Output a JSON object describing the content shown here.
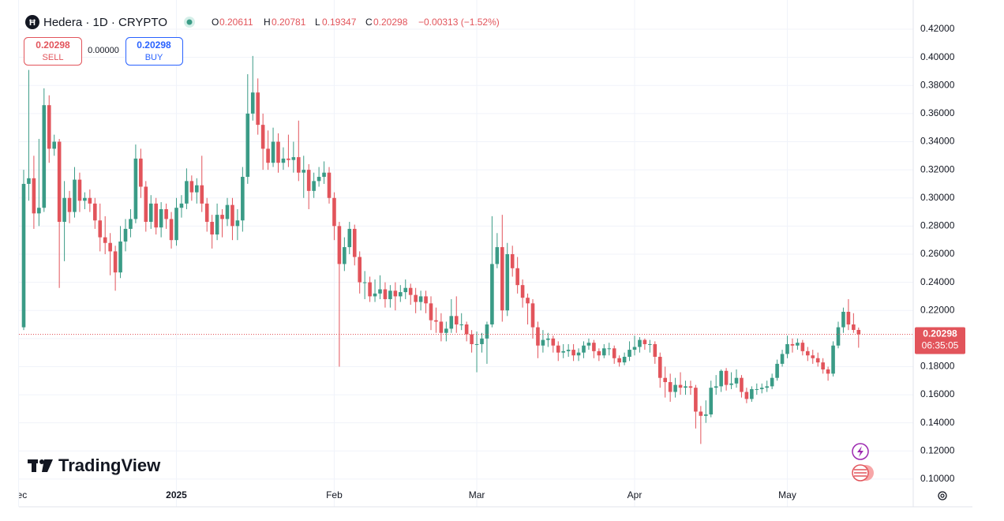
{
  "chart_data": {
    "type": "candlestick",
    "title": "Hedera · 1D · CRYPTO",
    "ohlc_labels": [
      "O",
      "H",
      "L",
      "C"
    ],
    "change": "−0.00313 (−1.52%)",
    "sell": {
      "price": "0.20298",
      "label": "SELL"
    },
    "spread": "0.00000",
    "buy": {
      "price": "0.20298",
      "label": "BUY"
    },
    "price_tag": {
      "price": "0.20298",
      "countdown": "06:35:05"
    },
    "watermark": "TradingView",
    "up_color": "#3a9b86",
    "down_color": "#e2545b",
    "grid": true,
    "ylim": [
      0.0803,
      0.4408
    ],
    "yticks": [
      {
        "value": 0.1,
        "label": "0.10000"
      },
      {
        "value": 0.12,
        "label": "0.12000"
      },
      {
        "value": 0.14,
        "label": "0.14000"
      },
      {
        "value": 0.16,
        "label": "0.16000"
      },
      {
        "value": 0.18,
        "label": "0.18000"
      },
      {
        "value": 0.2,
        "label": "0.20000"
      },
      {
        "value": 0.22,
        "label": "0.22000"
      },
      {
        "value": 0.24,
        "label": "0.24000"
      },
      {
        "value": 0.26,
        "label": "0.26000"
      },
      {
        "value": 0.28,
        "label": "0.28000"
      },
      {
        "value": 0.3,
        "label": "0.30000"
      },
      {
        "value": 0.32,
        "label": "0.32000"
      },
      {
        "value": 0.34,
        "label": "0.34000"
      },
      {
        "value": 0.36,
        "label": "0.36000"
      },
      {
        "value": 0.38,
        "label": "0.38000"
      },
      {
        "value": 0.4,
        "label": "0.40000"
      },
      {
        "value": 0.42,
        "label": "0.42000"
      }
    ],
    "xticks": [
      {
        "value": -1,
        "label": "Dec"
      },
      {
        "value": 30,
        "label": "2025"
      },
      {
        "value": 61,
        "label": "Feb"
      },
      {
        "value": 89,
        "label": "Mar"
      },
      {
        "value": 120,
        "label": "Apr"
      },
      {
        "value": 150,
        "label": "May"
      }
    ],
    "candles": [
      [
        0.208,
        0.32,
        0.206,
        0.31
      ],
      [
        0.31,
        0.391,
        0.298,
        0.314
      ],
      [
        0.314,
        0.33,
        0.278,
        0.289
      ],
      [
        0.289,
        0.342,
        0.28,
        0.293
      ],
      [
        0.293,
        0.378,
        0.29,
        0.366
      ],
      [
        0.366,
        0.373,
        0.325,
        0.335
      ],
      [
        0.335,
        0.345,
        0.33,
        0.34
      ],
      [
        0.34,
        0.342,
        0.236,
        0.283
      ],
      [
        0.283,
        0.312,
        0.255,
        0.3
      ],
      [
        0.3,
        0.305,
        0.282,
        0.29
      ],
      [
        0.29,
        0.322,
        0.286,
        0.313
      ],
      [
        0.313,
        0.318,
        0.29,
        0.298
      ],
      [
        0.298,
        0.304,
        0.292,
        0.3
      ],
      [
        0.3,
        0.306,
        0.29,
        0.296
      ],
      [
        0.296,
        0.3,
        0.278,
        0.284
      ],
      [
        0.284,
        0.296,
        0.262,
        0.272
      ],
      [
        0.272,
        0.287,
        0.26,
        0.268
      ],
      [
        0.268,
        0.275,
        0.245,
        0.262
      ],
      [
        0.262,
        0.266,
        0.234,
        0.247
      ],
      [
        0.247,
        0.28,
        0.243,
        0.269
      ],
      [
        0.269,
        0.285,
        0.262,
        0.278
      ],
      [
        0.278,
        0.292,
        0.272,
        0.285
      ],
      [
        0.285,
        0.338,
        0.282,
        0.328
      ],
      [
        0.328,
        0.335,
        0.3,
        0.308
      ],
      [
        0.308,
        0.312,
        0.276,
        0.283
      ],
      [
        0.283,
        0.302,
        0.278,
        0.296
      ],
      [
        0.296,
        0.3,
        0.274,
        0.279
      ],
      [
        0.279,
        0.297,
        0.272,
        0.292
      ],
      [
        0.292,
        0.296,
        0.278,
        0.285
      ],
      [
        0.285,
        0.29,
        0.264,
        0.27
      ],
      [
        0.27,
        0.3,
        0.266,
        0.293
      ],
      [
        0.293,
        0.302,
        0.286,
        0.296
      ],
      [
        0.296,
        0.321,
        0.292,
        0.312
      ],
      [
        0.312,
        0.316,
        0.298,
        0.304
      ],
      [
        0.304,
        0.314,
        0.296,
        0.309
      ],
      [
        0.309,
        0.33,
        0.29,
        0.296
      ],
      [
        0.296,
        0.3,
        0.276,
        0.283
      ],
      [
        0.283,
        0.288,
        0.264,
        0.274
      ],
      [
        0.274,
        0.296,
        0.27,
        0.288
      ],
      [
        0.288,
        0.292,
        0.272,
        0.285
      ],
      [
        0.285,
        0.3,
        0.28,
        0.295
      ],
      [
        0.295,
        0.3,
        0.27,
        0.28
      ],
      [
        0.28,
        0.292,
        0.27,
        0.284
      ],
      [
        0.284,
        0.322,
        0.276,
        0.315
      ],
      [
        0.315,
        0.388,
        0.31,
        0.36
      ],
      [
        0.36,
        0.401,
        0.355,
        0.375
      ],
      [
        0.375,
        0.385,
        0.345,
        0.352
      ],
      [
        0.352,
        0.36,
        0.32,
        0.335
      ],
      [
        0.335,
        0.348,
        0.32,
        0.325
      ],
      [
        0.325,
        0.35,
        0.322,
        0.34
      ],
      [
        0.34,
        0.346,
        0.318,
        0.325
      ],
      [
        0.325,
        0.336,
        0.32,
        0.328
      ],
      [
        0.328,
        0.345,
        0.322,
        0.327
      ],
      [
        0.327,
        0.34,
        0.318,
        0.329
      ],
      [
        0.329,
        0.355,
        0.312,
        0.318
      ],
      [
        0.318,
        0.33,
        0.3,
        0.32
      ],
      [
        0.32,
        0.324,
        0.292,
        0.305
      ],
      [
        0.305,
        0.318,
        0.3,
        0.312
      ],
      [
        0.312,
        0.322,
        0.308,
        0.315
      ],
      [
        0.315,
        0.326,
        0.31,
        0.318
      ],
      [
        0.318,
        0.322,
        0.296,
        0.3
      ],
      [
        0.3,
        0.304,
        0.27,
        0.28
      ],
      [
        0.28,
        0.283,
        0.18,
        0.253
      ],
      [
        0.253,
        0.272,
        0.248,
        0.265
      ],
      [
        0.265,
        0.283,
        0.26,
        0.278
      ],
      [
        0.278,
        0.281,
        0.252,
        0.258
      ],
      [
        0.258,
        0.262,
        0.232,
        0.24
      ],
      [
        0.24,
        0.248,
        0.228,
        0.24
      ],
      [
        0.24,
        0.244,
        0.226,
        0.23
      ],
      [
        0.23,
        0.242,
        0.226,
        0.232
      ],
      [
        0.232,
        0.245,
        0.228,
        0.235
      ],
      [
        0.235,
        0.24,
        0.222,
        0.228
      ],
      [
        0.228,
        0.238,
        0.222,
        0.234
      ],
      [
        0.234,
        0.24,
        0.22,
        0.23
      ],
      [
        0.23,
        0.238,
        0.226,
        0.233
      ],
      [
        0.233,
        0.242,
        0.228,
        0.236
      ],
      [
        0.236,
        0.239,
        0.224,
        0.231
      ],
      [
        0.231,
        0.236,
        0.218,
        0.226
      ],
      [
        0.226,
        0.234,
        0.22,
        0.23
      ],
      [
        0.23,
        0.234,
        0.218,
        0.225
      ],
      [
        0.225,
        0.23,
        0.206,
        0.213
      ],
      [
        0.213,
        0.222,
        0.204,
        0.212
      ],
      [
        0.212,
        0.218,
        0.198,
        0.204
      ],
      [
        0.204,
        0.212,
        0.198,
        0.207
      ],
      [
        0.207,
        0.228,
        0.204,
        0.216
      ],
      [
        0.216,
        0.23,
        0.204,
        0.21
      ],
      [
        0.21,
        0.218,
        0.206,
        0.21
      ],
      [
        0.21,
        0.212,
        0.198,
        0.203
      ],
      [
        0.203,
        0.206,
        0.19,
        0.196
      ],
      [
        0.196,
        0.205,
        0.176,
        0.196
      ],
      [
        0.196,
        0.204,
        0.19,
        0.2
      ],
      [
        0.2,
        0.212,
        0.182,
        0.21
      ],
      [
        0.21,
        0.287,
        0.208,
        0.253
      ],
      [
        0.253,
        0.275,
        0.25,
        0.265
      ],
      [
        0.265,
        0.288,
        0.212,
        0.22
      ],
      [
        0.22,
        0.268,
        0.216,
        0.26
      ],
      [
        0.26,
        0.266,
        0.244,
        0.25
      ],
      [
        0.25,
        0.258,
        0.232,
        0.238
      ],
      [
        0.238,
        0.242,
        0.222,
        0.229
      ],
      [
        0.229,
        0.232,
        0.21,
        0.225
      ],
      [
        0.225,
        0.228,
        0.2,
        0.208
      ],
      [
        0.208,
        0.212,
        0.186,
        0.195
      ],
      [
        0.195,
        0.206,
        0.19,
        0.199
      ],
      [
        0.199,
        0.204,
        0.194,
        0.2
      ],
      [
        0.2,
        0.202,
        0.19,
        0.195
      ],
      [
        0.195,
        0.198,
        0.184,
        0.19
      ],
      [
        0.19,
        0.196,
        0.186,
        0.191
      ],
      [
        0.191,
        0.196,
        0.187,
        0.192
      ],
      [
        0.192,
        0.196,
        0.184,
        0.188
      ],
      [
        0.188,
        0.193,
        0.184,
        0.19
      ],
      [
        0.19,
        0.198,
        0.186,
        0.195
      ],
      [
        0.195,
        0.2,
        0.192,
        0.197
      ],
      [
        0.197,
        0.199,
        0.186,
        0.191
      ],
      [
        0.191,
        0.193,
        0.184,
        0.188
      ],
      [
        0.188,
        0.196,
        0.186,
        0.193
      ],
      [
        0.193,
        0.197,
        0.188,
        0.193
      ],
      [
        0.193,
        0.195,
        0.182,
        0.186
      ],
      [
        0.186,
        0.188,
        0.18,
        0.183
      ],
      [
        0.183,
        0.19,
        0.181,
        0.187
      ],
      [
        0.187,
        0.198,
        0.184,
        0.192
      ],
      [
        0.192,
        0.202,
        0.188,
        0.194
      ],
      [
        0.194,
        0.201,
        0.19,
        0.199
      ],
      [
        0.199,
        0.2,
        0.192,
        0.196
      ],
      [
        0.196,
        0.199,
        0.19,
        0.196
      ],
      [
        0.196,
        0.198,
        0.182,
        0.187
      ],
      [
        0.187,
        0.19,
        0.165,
        0.172
      ],
      [
        0.172,
        0.18,
        0.158,
        0.169
      ],
      [
        0.169,
        0.175,
        0.155,
        0.162
      ],
      [
        0.162,
        0.172,
        0.158,
        0.167
      ],
      [
        0.167,
        0.176,
        0.16,
        0.165
      ],
      [
        0.165,
        0.17,
        0.16,
        0.166
      ],
      [
        0.166,
        0.17,
        0.16,
        0.165
      ],
      [
        0.165,
        0.167,
        0.136,
        0.148
      ],
      [
        0.148,
        0.152,
        0.125,
        0.145
      ],
      [
        0.145,
        0.156,
        0.14,
        0.146
      ],
      [
        0.146,
        0.17,
        0.144,
        0.165
      ],
      [
        0.165,
        0.174,
        0.16,
        0.166
      ],
      [
        0.166,
        0.178,
        0.162,
        0.177
      ],
      [
        0.177,
        0.179,
        0.163,
        0.167
      ],
      [
        0.167,
        0.176,
        0.164,
        0.168
      ],
      [
        0.168,
        0.178,
        0.165,
        0.172
      ],
      [
        0.172,
        0.174,
        0.158,
        0.162
      ],
      [
        0.162,
        0.165,
        0.154,
        0.157
      ],
      [
        0.157,
        0.166,
        0.155,
        0.164
      ],
      [
        0.164,
        0.168,
        0.16,
        0.164
      ],
      [
        0.164,
        0.168,
        0.161,
        0.165
      ],
      [
        0.165,
        0.17,
        0.162,
        0.166
      ],
      [
        0.166,
        0.175,
        0.164,
        0.172
      ],
      [
        0.172,
        0.185,
        0.17,
        0.182
      ],
      [
        0.182,
        0.192,
        0.18,
        0.189
      ],
      [
        0.189,
        0.202,
        0.186,
        0.196
      ],
      [
        0.196,
        0.2,
        0.19,
        0.195
      ],
      [
        0.195,
        0.2,
        0.192,
        0.197
      ],
      [
        0.197,
        0.199,
        0.188,
        0.191
      ],
      [
        0.191,
        0.194,
        0.184,
        0.188
      ],
      [
        0.188,
        0.192,
        0.182,
        0.186
      ],
      [
        0.186,
        0.19,
        0.18,
        0.183
      ],
      [
        0.183,
        0.186,
        0.175,
        0.178
      ],
      [
        0.178,
        0.18,
        0.17,
        0.175
      ],
      [
        0.175,
        0.198,
        0.173,
        0.195
      ],
      [
        0.195,
        0.212,
        0.193,
        0.208
      ],
      [
        0.208,
        0.222,
        0.204,
        0.219
      ],
      [
        0.219,
        0.228,
        0.206,
        0.21
      ],
      [
        0.21,
        0.218,
        0.204,
        0.20611
      ],
      [
        0.20611,
        0.20781,
        0.19347,
        0.20298
      ]
    ]
  }
}
